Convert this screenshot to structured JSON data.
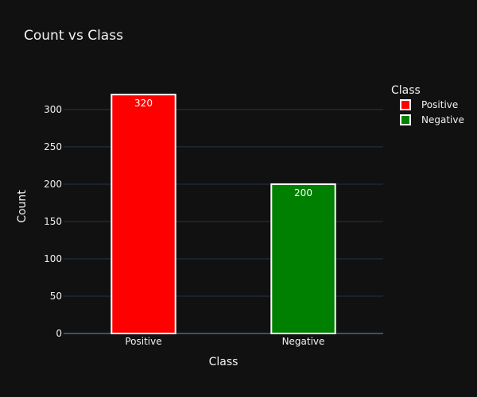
{
  "chart_data": {
    "type": "bar",
    "title": "Count vs Class",
    "xlabel": "Class",
    "ylabel": "Count",
    "categories": [
      "Positive",
      "Negative"
    ],
    "values": [
      320,
      200
    ],
    "data_labels": [
      "320",
      "200"
    ],
    "colors": [
      "#ff0000",
      "#008000"
    ],
    "bar_outline_color": "#ffffff",
    "ylim": [
      0,
      335
    ],
    "yticks": [
      0,
      50,
      100,
      150,
      200,
      250,
      300
    ],
    "grid": true,
    "legend": {
      "title": "Class",
      "placement": "top-right",
      "items": [
        {
          "label": "Positive",
          "color": "#ff0000"
        },
        {
          "label": "Negative",
          "color": "#008000"
        }
      ]
    },
    "background_color": "#111111",
    "grid_color": "#283442"
  }
}
